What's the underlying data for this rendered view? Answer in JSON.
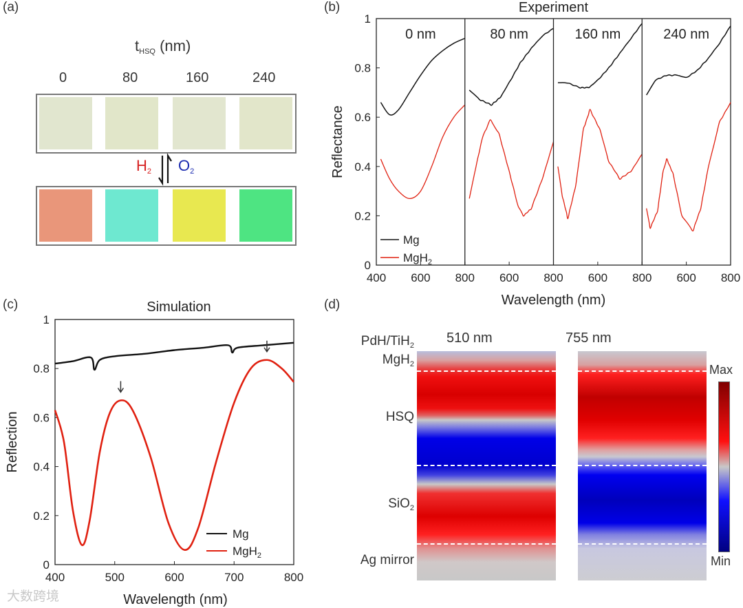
{
  "panel_labels": {
    "a": "(a)",
    "b": "(b)",
    "c": "(c)",
    "d": "(d)"
  },
  "panel_a": {
    "title_main": "t",
    "title_sub": "HSQ",
    "title_unit": "(nm)",
    "columns": [
      "0",
      "80",
      "160",
      "240"
    ],
    "h2": "H",
    "h2_sub": "2",
    "o2": "O",
    "o2_sub": "2",
    "colors_top": [
      "#e1e6cf",
      "#e1e6c9",
      "#e2e6cf",
      "#e2e6ca"
    ],
    "colors_bottom": [
      "#e9967a",
      "#6ee8d0",
      "#e8e850",
      "#4ee482"
    ],
    "h2_color": "#d62020",
    "o2_color": "#1a2ab0"
  },
  "chart_data": [
    {
      "id": "b",
      "type": "line",
      "title": "Experiment",
      "xlabel": "Wavelength (nm)",
      "ylabel": "Reflectance",
      "ylim": [
        0,
        1
      ],
      "yticks": [
        "0",
        "0.2",
        "0.4",
        "0.6",
        "0.8",
        "1"
      ],
      "xlim": [
        400,
        800
      ],
      "xticks": [
        "400",
        "600",
        "800"
      ],
      "legend": {
        "placement": "bottom-left",
        "entries": [
          {
            "name": "Mg",
            "color": "#111111"
          },
          {
            "name": "MgH",
            "sub": "2",
            "color": "#e02010"
          }
        ]
      },
      "subpanels": [
        {
          "label": "0 nm",
          "Mg": [
            [
              420,
              0.66
            ],
            [
              460,
              0.61
            ],
            [
              500,
              0.63
            ],
            [
              550,
              0.7
            ],
            [
              600,
              0.77
            ],
            [
              650,
              0.83
            ],
            [
              700,
              0.87
            ],
            [
              750,
              0.9
            ],
            [
              800,
              0.92
            ]
          ],
          "MgH2": [
            [
              420,
              0.43
            ],
            [
              460,
              0.35
            ],
            [
              500,
              0.3
            ],
            [
              550,
              0.27
            ],
            [
              600,
              0.3
            ],
            [
              650,
              0.4
            ],
            [
              700,
              0.52
            ],
            [
              750,
              0.6
            ],
            [
              800,
              0.65
            ]
          ]
        },
        {
          "label": "80 nm",
          "Mg": [
            [
              420,
              0.71
            ],
            [
              470,
              0.67
            ],
            [
              520,
              0.65
            ],
            [
              560,
              0.68
            ],
            [
              600,
              0.74
            ],
            [
              650,
              0.82
            ],
            [
              700,
              0.88
            ],
            [
              750,
              0.93
            ],
            [
              800,
              0.96
            ]
          ],
          "MgH2": [
            [
              420,
              0.27
            ],
            [
              450,
              0.4
            ],
            [
              480,
              0.52
            ],
            [
              515,
              0.59
            ],
            [
              555,
              0.53
            ],
            [
              600,
              0.38
            ],
            [
              640,
              0.24
            ],
            [
              665,
              0.2
            ],
            [
              700,
              0.23
            ],
            [
              750,
              0.35
            ],
            [
              800,
              0.5
            ]
          ]
        },
        {
          "label": "160 nm",
          "Mg": [
            [
              420,
              0.74
            ],
            [
              460,
              0.74
            ],
            [
              520,
              0.72
            ],
            [
              560,
              0.72
            ],
            [
              600,
              0.75
            ],
            [
              650,
              0.8
            ],
            [
              700,
              0.86
            ],
            [
              750,
              0.92
            ],
            [
              800,
              0.98
            ]
          ],
          "MgH2": [
            [
              420,
              0.4
            ],
            [
              440,
              0.28
            ],
            [
              465,
              0.19
            ],
            [
              500,
              0.32
            ],
            [
              535,
              0.55
            ],
            [
              565,
              0.63
            ],
            [
              610,
              0.55
            ],
            [
              650,
              0.42
            ],
            [
              700,
              0.35
            ],
            [
              750,
              0.38
            ],
            [
              800,
              0.45
            ]
          ]
        },
        {
          "label": "240 nm",
          "Mg": [
            [
              420,
              0.69
            ],
            [
              460,
              0.75
            ],
            [
              510,
              0.77
            ],
            [
              560,
              0.77
            ],
            [
              600,
              0.76
            ],
            [
              650,
              0.79
            ],
            [
              700,
              0.84
            ],
            [
              750,
              0.9
            ],
            [
              800,
              0.97
            ]
          ],
          "MgH2": [
            [
              420,
              0.23
            ],
            [
              437,
              0.15
            ],
            [
              470,
              0.22
            ],
            [
              495,
              0.38
            ],
            [
              512,
              0.43
            ],
            [
              540,
              0.37
            ],
            [
              580,
              0.2
            ],
            [
              630,
              0.14
            ],
            [
              665,
              0.23
            ],
            [
              700,
              0.4
            ],
            [
              750,
              0.58
            ],
            [
              800,
              0.66
            ]
          ]
        }
      ]
    },
    {
      "id": "c",
      "type": "line",
      "title": "Simulation",
      "xlabel": "Wavelength (nm)",
      "ylabel": "Reflection",
      "xlim": [
        400,
        800
      ],
      "ylim": [
        0,
        1
      ],
      "xticks": [
        "400",
        "500",
        "600",
        "700",
        "800"
      ],
      "yticks": [
        "0",
        "0.2",
        "0.4",
        "0.6",
        "0.8",
        "1"
      ],
      "legend": {
        "placement": "bottom-right",
        "entries": [
          {
            "name": "Mg",
            "color": "#111111"
          },
          {
            "name": "MgH",
            "sub": "2",
            "color": "#e02010"
          }
        ]
      },
      "series": [
        {
          "name": "Mg",
          "points": [
            [
              400,
              0.82
            ],
            [
              430,
              0.83
            ],
            [
              460,
              0.845
            ],
            [
              466,
              0.795
            ],
            [
              475,
              0.835
            ],
            [
              500,
              0.85
            ],
            [
              550,
              0.86
            ],
            [
              600,
              0.875
            ],
            [
              650,
              0.885
            ],
            [
              690,
              0.895
            ],
            [
              697,
              0.865
            ],
            [
              706,
              0.885
            ],
            [
              750,
              0.895
            ],
            [
              800,
              0.905
            ]
          ]
        },
        {
          "name": "MgH2",
          "points": [
            [
              400,
              0.63
            ],
            [
              415,
              0.5
            ],
            [
              430,
              0.22
            ],
            [
              445,
              0.08
            ],
            [
              458,
              0.18
            ],
            [
              475,
              0.46
            ],
            [
              492,
              0.62
            ],
            [
              510,
              0.67
            ],
            [
              530,
              0.63
            ],
            [
              560,
              0.44
            ],
            [
              590,
              0.17
            ],
            [
              617,
              0.06
            ],
            [
              640,
              0.15
            ],
            [
              670,
              0.42
            ],
            [
              700,
              0.66
            ],
            [
              728,
              0.8
            ],
            [
              755,
              0.835
            ],
            [
              780,
              0.8
            ],
            [
              800,
              0.745
            ]
          ]
        }
      ],
      "annotations": [
        {
          "type": "arrow",
          "x": 510
        },
        {
          "type": "arrow",
          "x": 755
        }
      ]
    },
    {
      "id": "d",
      "type": "heatmap",
      "title": "",
      "columns": [
        "510 nm",
        "755 nm"
      ],
      "layers": [
        {
          "name": "PdH/TiH",
          "sub": "2"
        },
        {
          "name": "MgH",
          "sub": "2"
        },
        {
          "name": "HSQ",
          "sub": ""
        },
        {
          "name": "SiO",
          "sub": "2"
        },
        {
          "name": "Ag mirror",
          "sub": ""
        }
      ],
      "colorbar": {
        "max": "Max",
        "min": "Min"
      }
    }
  ],
  "watermark": {
    "text": "大数跨境"
  }
}
